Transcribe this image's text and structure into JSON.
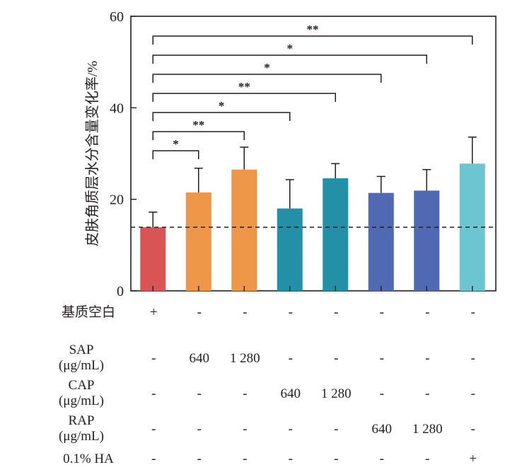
{
  "chart_data": {
    "type": "bar",
    "title": "",
    "xlabel": "",
    "ylabel": "皮肤角质层水分含量变化率/%",
    "ylim": [
      0,
      60
    ],
    "yticks": [
      0,
      20,
      40,
      60
    ],
    "grid": false,
    "reference_line": {
      "value": 13.9,
      "style": "dashed",
      "meaning": "blank matrix level"
    },
    "groups": [
      "Blank",
      "SAP 640",
      "SAP 1280",
      "CAP 640",
      "CAP 1280",
      "RAP 640",
      "RAP 1280",
      "0.1% HA"
    ],
    "values": [
      13.9,
      21.5,
      26.5,
      18.0,
      24.6,
      21.4,
      21.9,
      27.8
    ],
    "error_upper": [
      17.2,
      26.8,
      31.4,
      24.3,
      27.8,
      25.0,
      26.5,
      33.6
    ],
    "colors": [
      "#d95555",
      "#ef9748",
      "#ef9748",
      "#2390a8",
      "#2390a8",
      "#4f69b3",
      "#4f69b3",
      "#6bc6d1"
    ],
    "significance": [
      {
        "from": 0,
        "to": 1,
        "label": "*"
      },
      {
        "from": 0,
        "to": 2,
        "label": "**"
      },
      {
        "from": 0,
        "to": 3,
        "label": "*"
      },
      {
        "from": 0,
        "to": 4,
        "label": "**"
      },
      {
        "from": 0,
        "to": 5,
        "label": "*"
      },
      {
        "from": 0,
        "to": 6,
        "label": "*"
      },
      {
        "from": 0,
        "to": 7,
        "label": "**"
      }
    ],
    "treatment_table": {
      "rows": [
        {
          "label": [
            "基质空白"
          ],
          "cells": [
            "+",
            "-",
            "-",
            "-",
            "-",
            "-",
            "-",
            "-"
          ]
        },
        {
          "label": [
            "SAP",
            "(μg/mL)"
          ],
          "cells": [
            "-",
            "640",
            "1 280",
            "-",
            "-",
            "-",
            "-",
            "-"
          ]
        },
        {
          "label": [
            "CAP",
            "(μg/mL)"
          ],
          "cells": [
            "-",
            "-",
            "-",
            "640",
            "1 280",
            "-",
            "-",
            "-"
          ]
        },
        {
          "label": [
            "RAP",
            "(μg/mL)"
          ],
          "cells": [
            "-",
            "-",
            "-",
            "-",
            "-",
            "640",
            "1 280",
            "-"
          ]
        },
        {
          "label": [
            "0.1% HA"
          ],
          "cells": [
            "-",
            "-",
            "-",
            "-",
            "-",
            "-",
            "-",
            "+"
          ]
        }
      ]
    }
  }
}
